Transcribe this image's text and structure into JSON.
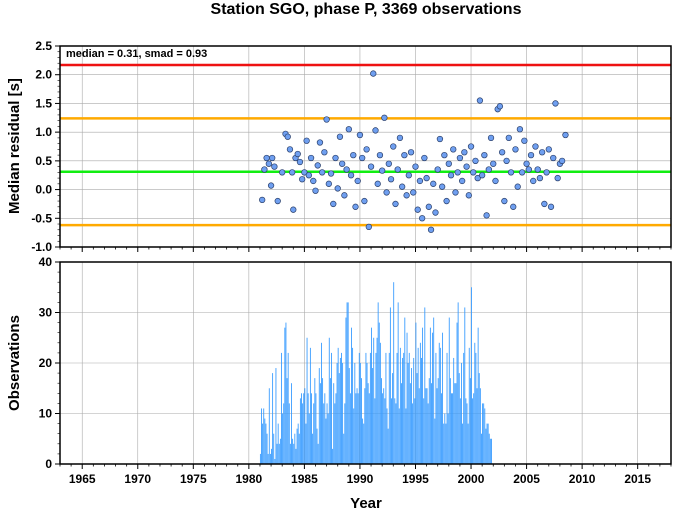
{
  "title": "Station SGO, phase P, 3369 observations",
  "top_chart": {
    "ylabel": "Median residual [s]",
    "annotation": "median = 0.31, smad = 0.93",
    "xlim": [
      1963,
      2018
    ],
    "ylim": [
      -1.0,
      2.5
    ],
    "yticks": [
      "2.5",
      "2.0",
      "1.5",
      "1.0",
      "0.5",
      "0.0",
      "-0.5",
      "-1.0"
    ],
    "ytick_values": [
      2.5,
      2.0,
      1.5,
      1.0,
      0.5,
      0.0,
      -0.5,
      -1.0
    ],
    "hlines": [
      {
        "value": 2.17,
        "color": "#ee1111"
      },
      {
        "value": 1.24,
        "color": "#ffaa00"
      },
      {
        "value": 0.31,
        "color": "#11ee11"
      },
      {
        "value": -0.62,
        "color": "#ffaa00"
      }
    ],
    "point_color": "#6f9ff0"
  },
  "bottom_chart": {
    "ylabel": "Observations",
    "xlabel": "Year",
    "ylim": [
      0,
      40
    ],
    "yticks": [
      "40",
      "30",
      "20",
      "10",
      "0"
    ],
    "ytick_values": [
      40,
      30,
      20,
      10,
      0
    ],
    "bar_color": "#3399ff"
  },
  "xticks": [
    "1965",
    "1970",
    "1975",
    "1980",
    "1985",
    "1990",
    "1995",
    "2000",
    "2005",
    "2010",
    "2015"
  ],
  "xtick_values": [
    1965,
    1970,
    1975,
    1980,
    1985,
    1990,
    1995,
    2000,
    2005,
    2010,
    2015
  ],
  "chart_data": [
    {
      "type": "scatter",
      "ylabel": "Median residual [s]",
      "xlim": [
        1963,
        2018
      ],
      "ylim": [
        -1.0,
        2.5
      ],
      "points": [
        [
          1981.2,
          -0.18
        ],
        [
          1981.4,
          0.35
        ],
        [
          1981.6,
          0.55
        ],
        [
          1981.8,
          0.45
        ],
        [
          1982.0,
          0.07
        ],
        [
          1982.1,
          0.55
        ],
        [
          1982.3,
          0.4
        ],
        [
          1982.6,
          -0.2
        ],
        [
          1983.0,
          0.3
        ],
        [
          1983.3,
          0.97
        ],
        [
          1983.5,
          0.92
        ],
        [
          1983.7,
          0.7
        ],
        [
          1983.9,
          0.3
        ],
        [
          1984.0,
          -0.35
        ],
        [
          1984.2,
          0.55
        ],
        [
          1984.4,
          0.62
        ],
        [
          1984.6,
          0.48
        ],
        [
          1984.8,
          0.18
        ],
        [
          1985.0,
          0.3
        ],
        [
          1985.2,
          0.85
        ],
        [
          1985.4,
          0.25
        ],
        [
          1985.6,
          0.55
        ],
        [
          1985.8,
          0.15
        ],
        [
          1986.0,
          -0.02
        ],
        [
          1986.2,
          0.42
        ],
        [
          1986.4,
          0.82
        ],
        [
          1986.6,
          0.3
        ],
        [
          1986.8,
          0.65
        ],
        [
          1987.0,
          1.22
        ],
        [
          1987.2,
          0.1
        ],
        [
          1987.4,
          0.28
        ],
        [
          1987.6,
          -0.25
        ],
        [
          1987.8,
          0.55
        ],
        [
          1988.0,
          0.02
        ],
        [
          1988.2,
          0.92
        ],
        [
          1988.4,
          0.45
        ],
        [
          1988.6,
          -0.1
        ],
        [
          1988.8,
          0.35
        ],
        [
          1989.0,
          1.05
        ],
        [
          1989.2,
          0.25
        ],
        [
          1989.4,
          0.6
        ],
        [
          1989.6,
          -0.3
        ],
        [
          1989.8,
          0.15
        ],
        [
          1990.0,
          0.95
        ],
        [
          1990.2,
          0.55
        ],
        [
          1990.4,
          -0.2
        ],
        [
          1990.6,
          0.7
        ],
        [
          1990.8,
          -0.65
        ],
        [
          1991.0,
          0.4
        ],
        [
          1991.2,
          2.02
        ],
        [
          1991.4,
          1.03
        ],
        [
          1991.6,
          0.1
        ],
        [
          1991.8,
          0.6
        ],
        [
          1992.0,
          0.33
        ],
        [
          1992.2,
          1.25
        ],
        [
          1992.4,
          -0.05
        ],
        [
          1992.6,
          0.45
        ],
        [
          1992.8,
          0.18
        ],
        [
          1993.0,
          0.75
        ],
        [
          1993.2,
          -0.25
        ],
        [
          1993.4,
          0.35
        ],
        [
          1993.6,
          0.9
        ],
        [
          1993.8,
          0.05
        ],
        [
          1994.0,
          0.6
        ],
        [
          1994.2,
          -0.1
        ],
        [
          1994.4,
          0.25
        ],
        [
          1994.6,
          0.65
        ],
        [
          1994.8,
          -0.05
        ],
        [
          1995.0,
          0.4
        ],
        [
          1995.2,
          -0.35
        ],
        [
          1995.4,
          0.15
        ],
        [
          1995.6,
          -0.5
        ],
        [
          1995.8,
          0.55
        ],
        [
          1996.0,
          0.2
        ],
        [
          1996.2,
          -0.3
        ],
        [
          1996.4,
          -0.7
        ],
        [
          1996.6,
          0.1
        ],
        [
          1996.8,
          -0.4
        ],
        [
          1997.0,
          0.35
        ],
        [
          1997.2,
          0.88
        ],
        [
          1997.4,
          0.05
        ],
        [
          1997.6,
          0.6
        ],
        [
          1997.8,
          -0.2
        ],
        [
          1998.0,
          0.45
        ],
        [
          1998.2,
          0.25
        ],
        [
          1998.4,
          0.7
        ],
        [
          1998.6,
          -0.05
        ],
        [
          1998.8,
          0.3
        ],
        [
          1999.0,
          0.55
        ],
        [
          1999.2,
          0.15
        ],
        [
          1999.4,
          0.65
        ],
        [
          1999.6,
          0.4
        ],
        [
          1999.8,
          -0.1
        ],
        [
          2000.0,
          0.75
        ],
        [
          2000.2,
          0.3
        ],
        [
          2000.4,
          0.5
        ],
        [
          2000.6,
          0.2
        ],
        [
          2000.8,
          1.55
        ],
        [
          2001.0,
          0.25
        ],
        [
          2001.2,
          0.6
        ],
        [
          2001.4,
          -0.45
        ],
        [
          2001.6,
          0.35
        ],
        [
          2001.8,
          0.9
        ],
        [
          2002.0,
          0.45
        ],
        [
          2002.2,
          0.15
        ],
        [
          2002.4,
          1.4
        ],
        [
          2002.6,
          1.45
        ],
        [
          2002.8,
          0.65
        ],
        [
          2003.0,
          -0.2
        ],
        [
          2003.2,
          0.5
        ],
        [
          2003.4,
          0.9
        ],
        [
          2003.6,
          0.3
        ],
        [
          2003.8,
          -0.3
        ],
        [
          2004.0,
          0.7
        ],
        [
          2004.2,
          0.05
        ],
        [
          2004.4,
          1.05
        ],
        [
          2004.6,
          0.3
        ],
        [
          2004.8,
          0.85
        ],
        [
          2005.0,
          0.45
        ],
        [
          2005.2,
          0.35
        ],
        [
          2005.4,
          0.6
        ],
        [
          2005.6,
          0.15
        ],
        [
          2005.8,
          0.75
        ],
        [
          2006.0,
          0.35
        ],
        [
          2006.2,
          0.2
        ],
        [
          2006.4,
          0.65
        ],
        [
          2006.6,
          -0.25
        ],
        [
          2006.8,
          0.3
        ],
        [
          2007.0,
          0.7
        ],
        [
          2007.2,
          -0.3
        ],
        [
          2007.4,
          0.55
        ],
        [
          2007.6,
          1.5
        ],
        [
          2007.8,
          0.2
        ],
        [
          2008.0,
          0.45
        ],
        [
          2008.2,
          0.5
        ],
        [
          2008.5,
          0.95
        ]
      ]
    },
    {
      "type": "bar",
      "ylabel": "Observations",
      "xlabel": "Year",
      "xlim": [
        1963,
        2018
      ],
      "ylim": [
        0,
        40
      ],
      "x_start": 1981.0,
      "x_step": 0.1,
      "values": [
        2,
        11,
        8,
        11,
        9,
        8,
        6,
        2,
        15,
        2,
        3,
        18,
        6,
        1,
        19,
        4,
        8,
        4,
        5,
        22,
        10,
        12,
        27,
        28,
        17,
        22,
        12,
        4,
        16,
        5,
        4,
        6,
        3,
        7,
        8,
        6,
        13,
        14,
        12,
        14,
        15,
        8,
        25,
        14,
        10,
        23,
        14,
        6,
        12,
        17,
        14,
        7,
        4,
        19,
        16,
        24,
        17,
        12,
        14,
        9,
        12,
        10,
        25,
        17,
        22,
        3,
        16,
        12,
        14,
        20,
        23,
        18,
        21,
        22,
        20,
        6,
        12,
        29,
        32,
        32,
        19,
        14,
        27,
        23,
        11,
        20,
        14,
        15,
        14,
        22,
        20,
        17,
        9,
        8,
        15,
        22,
        20,
        16,
        14,
        22,
        27,
        19,
        25,
        13,
        22,
        25,
        32,
        28,
        24,
        17,
        14,
        15,
        13,
        22,
        11,
        7,
        22,
        31,
        13,
        18,
        36,
        13,
        12,
        22,
        32,
        11,
        23,
        16,
        21,
        22,
        29,
        11,
        26,
        20,
        22,
        16,
        19,
        12,
        21,
        13,
        28,
        18,
        23,
        15,
        24,
        21,
        27,
        13,
        31,
        15,
        15,
        12,
        17,
        27,
        16,
        26,
        29,
        9,
        22,
        15,
        17,
        24,
        23,
        14,
        26,
        8,
        10,
        8,
        22,
        10,
        29,
        17,
        14,
        14,
        21,
        16,
        16,
        28,
        32,
        18,
        13,
        20,
        8,
        22,
        31,
        13,
        12,
        8,
        23,
        17,
        35,
        13,
        14,
        24,
        22,
        15,
        27,
        18,
        15,
        6,
        12,
        12,
        11,
        7,
        8,
        8,
        6,
        5,
        5
      ]
    }
  ]
}
